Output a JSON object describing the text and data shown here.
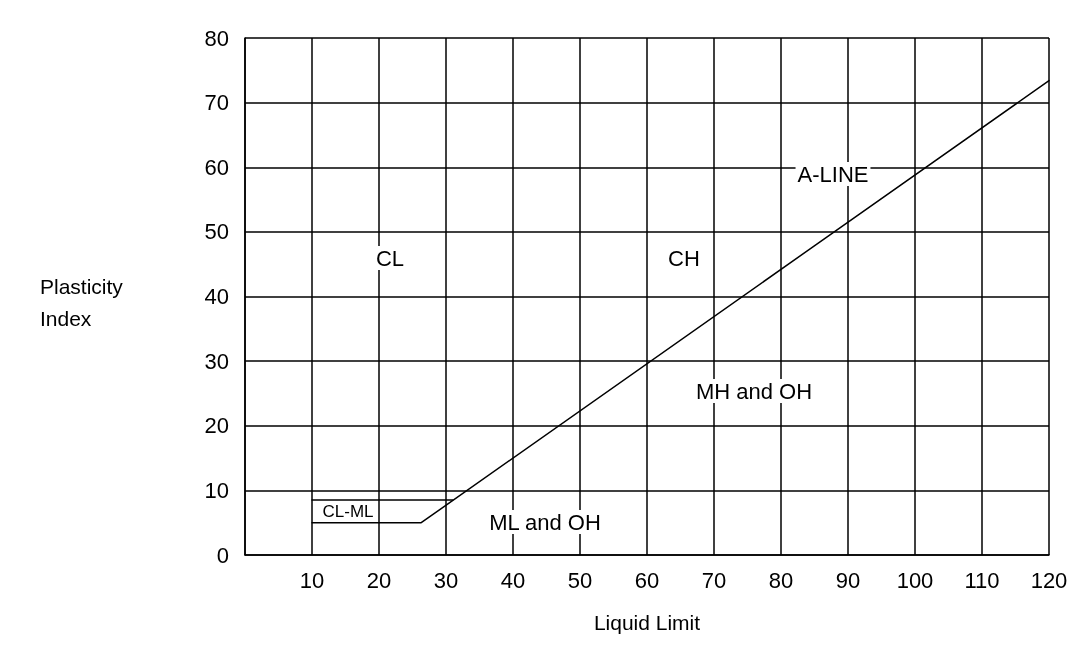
{
  "chart_data": {
    "type": "line",
    "xlabel": "Liquid Limit",
    "ylabel": "Plasticity Index",
    "xlim": [
      0,
      120
    ],
    "xticks": [
      {
        "value": 0,
        "label": null
      },
      10,
      20,
      30,
      40,
      50,
      60,
      70,
      80,
      90,
      100,
      110,
      120
    ],
    "ylim": [
      0,
      80
    ],
    "yticks": [
      0,
      10,
      20,
      30,
      40,
      50,
      60,
      70,
      80
    ],
    "grid": true,
    "marker": "none",
    "line_style": "solid",
    "series": [
      {
        "color": "#000000",
        "x": [
          10,
          26.3,
          120
        ],
        "values": [
          5,
          5,
          73.4
        ]
      },
      {
        "color": "#000000",
        "x": [
          10,
          31
        ],
        "values": [
          8.5,
          8.5
        ]
      }
    ],
    "annotations": [
      "CL",
      "CH",
      "A-LINE",
      "MH and OH",
      "ML and OH",
      "CL-ML"
    ]
  }
}
